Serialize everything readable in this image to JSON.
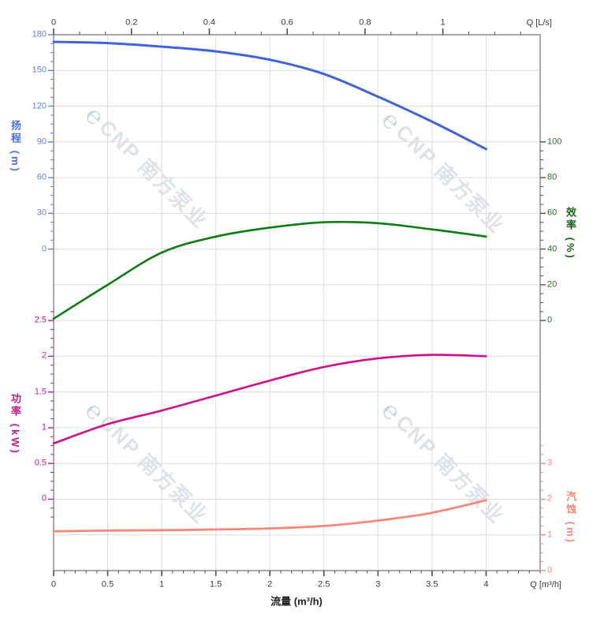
{
  "watermark": {
    "icon": "cnp-logo-icon",
    "text": "CNP 南方泵业",
    "icon_color": "#c3d4ea",
    "text_color": "#dee2e9"
  },
  "chart_data": {
    "type": "line",
    "title": "",
    "grid": true,
    "legend": false,
    "x": [
      0,
      0.5,
      1,
      1.5,
      2,
      2.5,
      3,
      3.5,
      4
    ],
    "x_axis_bottom": {
      "label": "流量 (m³/h)",
      "corner_label": "Q [m³/h]",
      "ticks": [
        0,
        0.5,
        1,
        1.5,
        2,
        2.5,
        3,
        3.5,
        4
      ],
      "range": [
        0,
        4.5
      ],
      "minor_step": 0.1,
      "tick_color": "#4c4c4c",
      "label_color": "#3b3b3b"
    },
    "x_axis_top": {
      "label": "Q [L/s]",
      "ticks": [
        0,
        0.2,
        0.4,
        0.6,
        0.8,
        1
      ],
      "range": [
        0,
        1.25
      ],
      "minor_step": 0.0667,
      "tick_color": "#4c4c4c",
      "label_color": "#3b3b3b"
    },
    "y_axes": [
      {
        "id": "head",
        "title": "扬程 (m)",
        "side": "left",
        "ticks": [
          180,
          150,
          120,
          90,
          60,
          30,
          0
        ],
        "row_start": 0,
        "minor_ext": [
          0,
          0
        ],
        "color": "#5d80e0"
      },
      {
        "id": "eff",
        "title": "效率 (%)",
        "side": "right",
        "ticks": [
          100,
          80,
          60,
          40,
          20,
          0
        ],
        "row_start": 3,
        "minor_ext": [
          0,
          0
        ],
        "color": "#2a6b2a"
      },
      {
        "id": "power",
        "title": "功率 (kW)",
        "side": "left",
        "ticks": [
          2.5,
          2,
          1.5,
          1,
          0.5,
          0
        ],
        "row_start": 8,
        "minor_ext": [
          1,
          2
        ],
        "color": "#c2188f"
      },
      {
        "id": "npsh",
        "title": "汽蚀 (m)",
        "side": "right",
        "ticks": [
          3,
          2,
          1,
          0
        ],
        "row_start": 12,
        "minor_ext": [
          2,
          0
        ],
        "color": "#f2877c"
      }
    ],
    "series": [
      {
        "name": "扬程",
        "axis": "head",
        "color": "#3e63da",
        "width": 3.0,
        "values": [
          174,
          173,
          170,
          166,
          159,
          147,
          128,
          107,
          84
        ]
      },
      {
        "name": "效率",
        "axis": "eff",
        "color": "#0b7c12",
        "width": 2.6,
        "values": [
          1,
          20,
          38,
          47,
          52,
          55,
          54.5,
          51,
          47
        ]
      },
      {
        "name": "功率",
        "axis": "power",
        "color": "#cf1086",
        "width": 2.6,
        "values": [
          0.78,
          1.05,
          1.24,
          1.45,
          1.66,
          1.85,
          1.97,
          2.02,
          2.0
        ]
      },
      {
        "name": "汽蚀",
        "axis": "npsh",
        "color": "#f4887b",
        "width": 2.8,
        "values": [
          1.1,
          1.12,
          1.13,
          1.15,
          1.18,
          1.25,
          1.4,
          1.62,
          1.97
        ]
      }
    ],
    "style": {
      "grid_color": "#dbdbdb",
      "border_color": "#a9a9a9",
      "background": "#ffffff"
    }
  }
}
